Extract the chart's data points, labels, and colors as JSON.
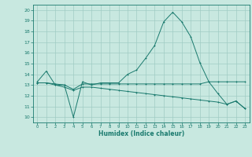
{
  "xlabel": "Humidex (Indice chaleur)",
  "xlim": [
    -0.5,
    23.5
  ],
  "ylim": [
    9.5,
    20.5
  ],
  "xticks": [
    0,
    1,
    2,
    3,
    4,
    5,
    6,
    7,
    8,
    9,
    10,
    11,
    12,
    13,
    14,
    15,
    16,
    17,
    18,
    19,
    20,
    21,
    22,
    23
  ],
  "yticks": [
    10,
    11,
    12,
    13,
    14,
    15,
    16,
    17,
    18,
    19,
    20
  ],
  "background_color": "#c8e8e0",
  "grid_color": "#a0ccc4",
  "line_color": "#1a7a6e",
  "line1_x": [
    0,
    1,
    2,
    3,
    4,
    5,
    6,
    7,
    8,
    9,
    10,
    11,
    12,
    13,
    14,
    15,
    16,
    17,
    18,
    19,
    20,
    21,
    22,
    23
  ],
  "line1_y": [
    13.3,
    14.3,
    13.0,
    13.0,
    10.0,
    13.3,
    13.0,
    13.2,
    13.2,
    13.2,
    14.0,
    14.4,
    15.5,
    16.7,
    18.9,
    19.8,
    18.9,
    17.5,
    15.1,
    13.3,
    12.2,
    11.2,
    11.5,
    10.8
  ],
  "line2_x": [
    0,
    1,
    2,
    3,
    4,
    5,
    6,
    7,
    8,
    9,
    10,
    11,
    12,
    13,
    14,
    15,
    16,
    17,
    18,
    19,
    20,
    21,
    22,
    23
  ],
  "line2_y": [
    13.2,
    13.2,
    13.1,
    13.0,
    12.6,
    13.1,
    13.1,
    13.1,
    13.1,
    13.1,
    13.1,
    13.1,
    13.1,
    13.1,
    13.1,
    13.1,
    13.1,
    13.1,
    13.1,
    13.3,
    13.3,
    13.3,
    13.3,
    13.3
  ],
  "line3_x": [
    0,
    1,
    2,
    3,
    4,
    5,
    6,
    7,
    8,
    9,
    10,
    11,
    12,
    13,
    14,
    15,
    16,
    17,
    18,
    19,
    20,
    21,
    22,
    23
  ],
  "line3_y": [
    13.2,
    13.2,
    13.0,
    12.8,
    12.5,
    12.8,
    12.8,
    12.7,
    12.6,
    12.5,
    12.4,
    12.3,
    12.2,
    12.1,
    12.0,
    11.9,
    11.8,
    11.7,
    11.6,
    11.5,
    11.4,
    11.2,
    11.5,
    10.8
  ]
}
